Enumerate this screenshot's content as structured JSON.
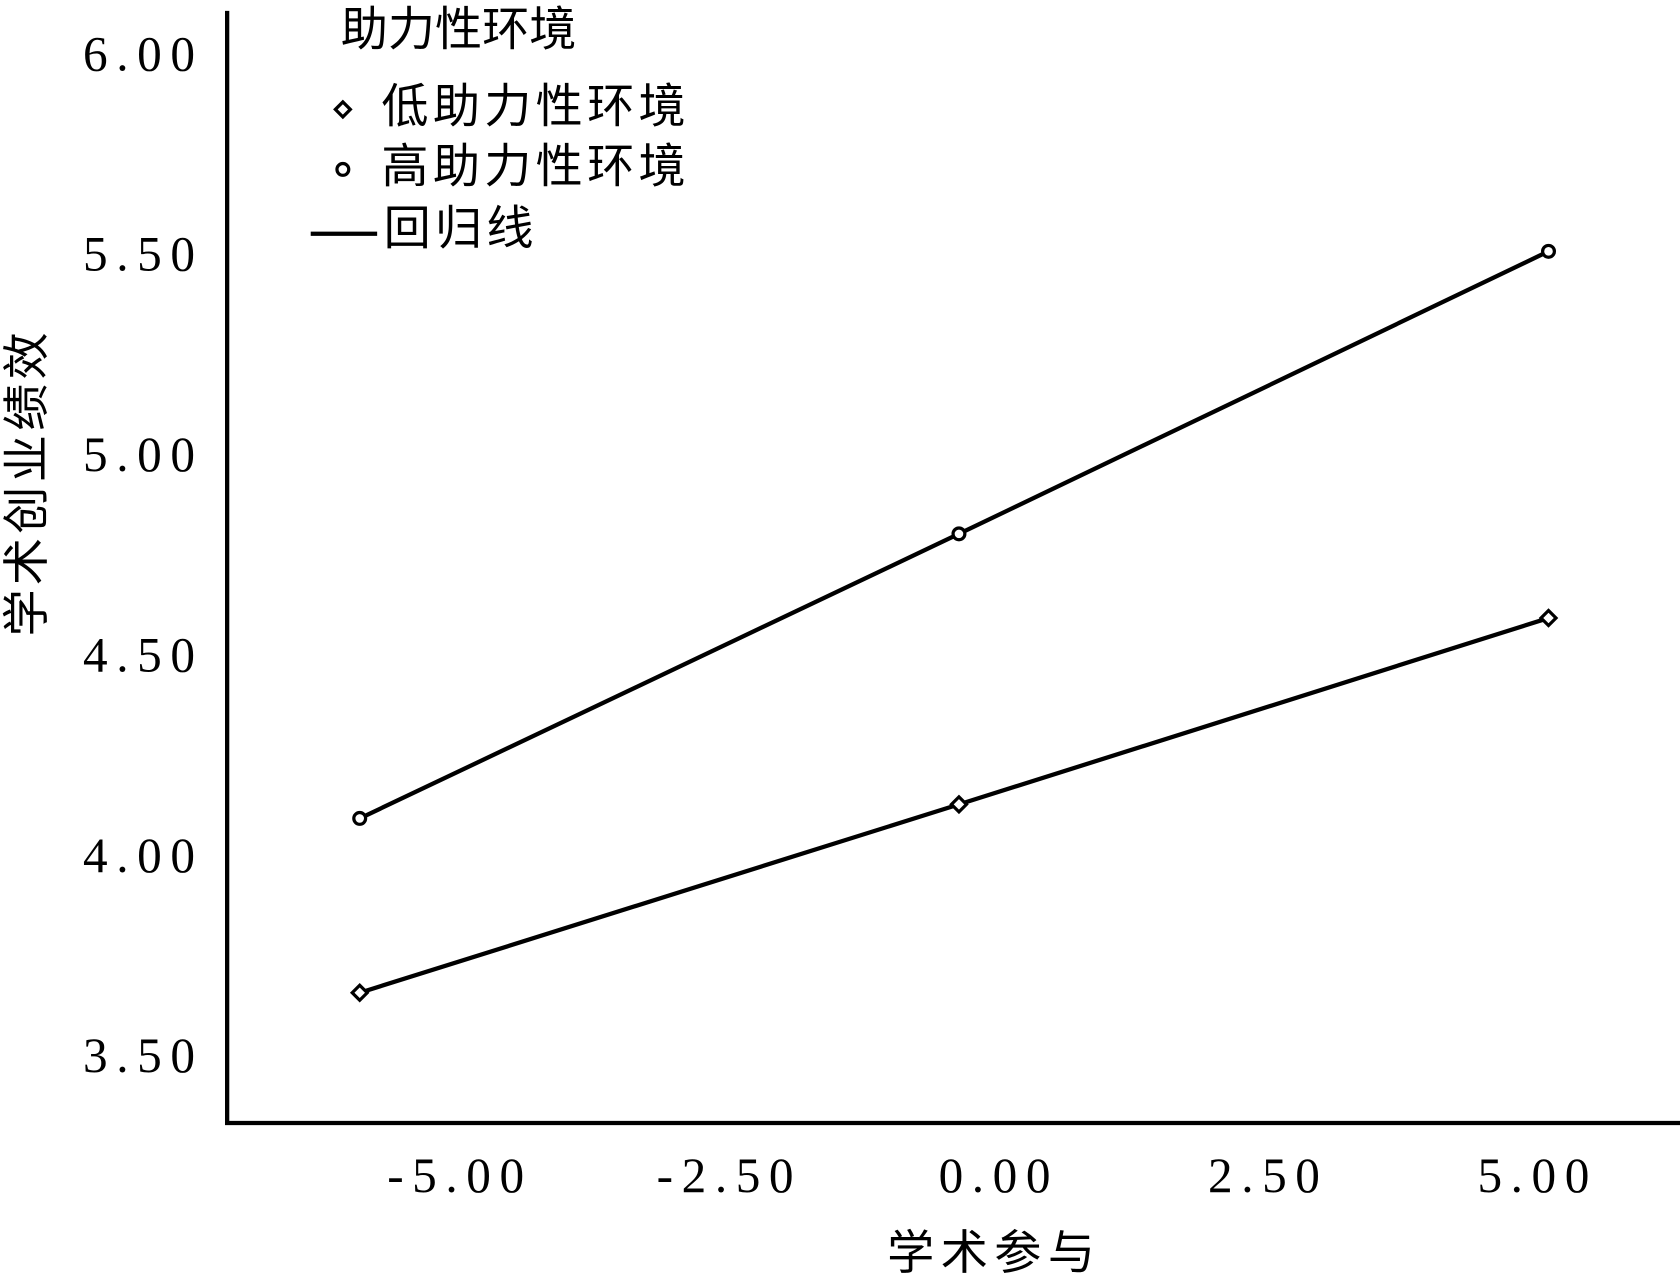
{
  "chart_data": {
    "type": "line",
    "x_label": "学术参与",
    "y_label": "学术创业绩效",
    "legend_title": "助力性环境",
    "line_label": "回归线",
    "x": [
      -5.93,
      -0.37,
      5.1
    ],
    "series": [
      {
        "name": "低助力性环境",
        "color": "#000000",
        "marker": "diamond",
        "values": [
          3.67,
          4.14,
          4.605
        ]
      },
      {
        "name": "高助力性环境",
        "color": "#000000",
        "marker": "circle",
        "values": [
          4.105,
          4.815,
          5.52
        ]
      }
    ],
    "xlim": [
      -7.16,
      6.32
    ],
    "ylim": [
      3.345,
      6.12
    ],
    "xticks": [
      {
        "value": -5,
        "label": "-5.00"
      },
      {
        "value": -2.5,
        "label": "-2.50"
      },
      {
        "value": 0,
        "label": "0.00"
      },
      {
        "value": 2.5,
        "label": "2.50"
      },
      {
        "value": 5,
        "label": "5.00"
      }
    ],
    "yticks": [
      {
        "value": 3.5,
        "label": "3.50"
      },
      {
        "value": 4,
        "label": "4.00"
      },
      {
        "value": 4.5,
        "label": "4.50"
      },
      {
        "value": 5,
        "label": "5.00"
      },
      {
        "value": 5.5,
        "label": "5.50"
      },
      {
        "value": 6,
        "label": "6.00"
      }
    ],
    "grid": false
  }
}
